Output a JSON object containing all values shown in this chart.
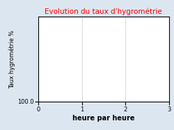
{
  "title": "Evolution du taux d'hygrométrie",
  "title_color": "#ff0000",
  "xlabel": "heure par heure",
  "ylabel": "Taux hygrométrie %",
  "background_color": "#dce6f0",
  "plot_bg_color": "#ffffff",
  "xlim": [
    0,
    3
  ],
  "ylim_bottom_label": "100.0",
  "xticks": [
    0,
    1,
    2,
    3
  ],
  "grid_color": "#c8c8c8",
  "title_fontsize": 7.5,
  "axis_label_fontsize": 6.5,
  "tick_fontsize": 6,
  "ylabel_fontsize": 6,
  "xlabel_fontsize": 7
}
